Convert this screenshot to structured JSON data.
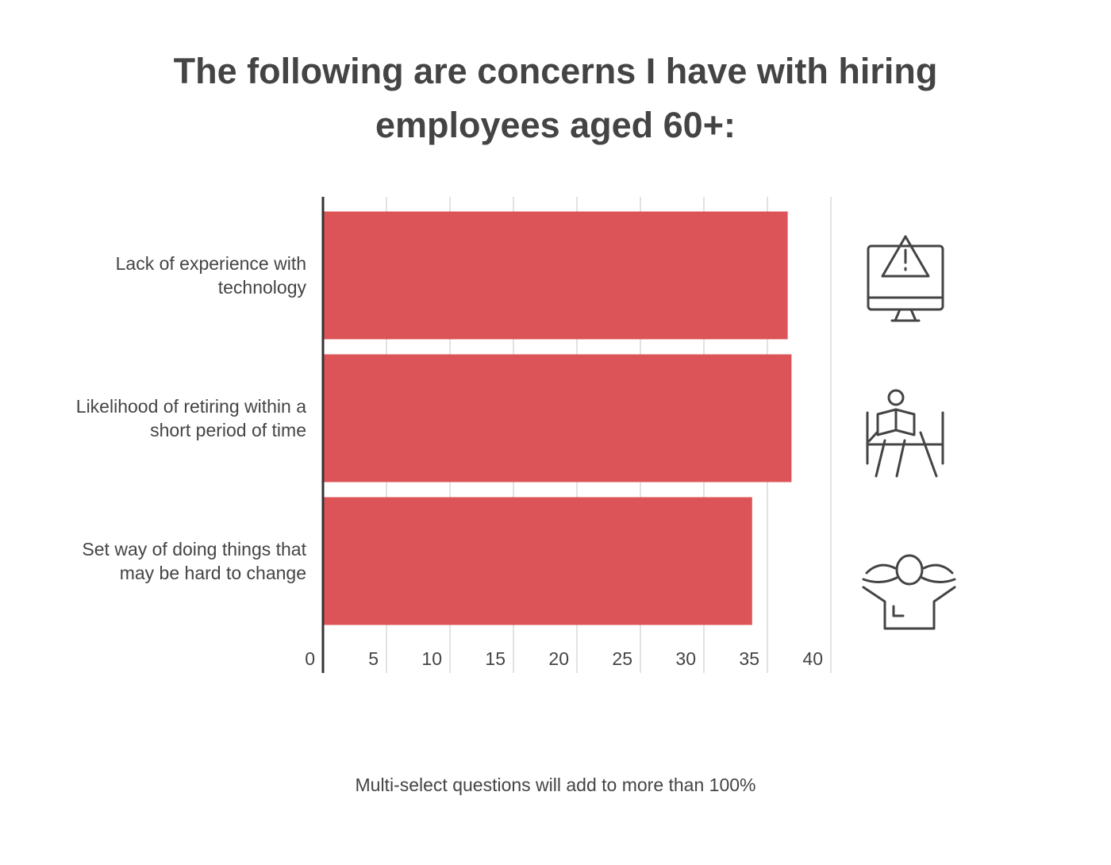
{
  "chart_data": {
    "type": "barh",
    "title": "The following are concerns I have with hiring employees aged 60+:",
    "categories": [
      "Lack of experience with technology",
      "Likelihood of retiring within a short period of time",
      "Set way of doing things that may be hard to change"
    ],
    "values": [
      36.6,
      36.9,
      33.8
    ],
    "color": "#dc5457",
    "xlim": [
      0,
      40
    ],
    "xticks": [
      0,
      5,
      10,
      15,
      20,
      25,
      30,
      35,
      40
    ],
    "grid": true,
    "note": "Multi-select questions will add to more than 100%"
  }
}
